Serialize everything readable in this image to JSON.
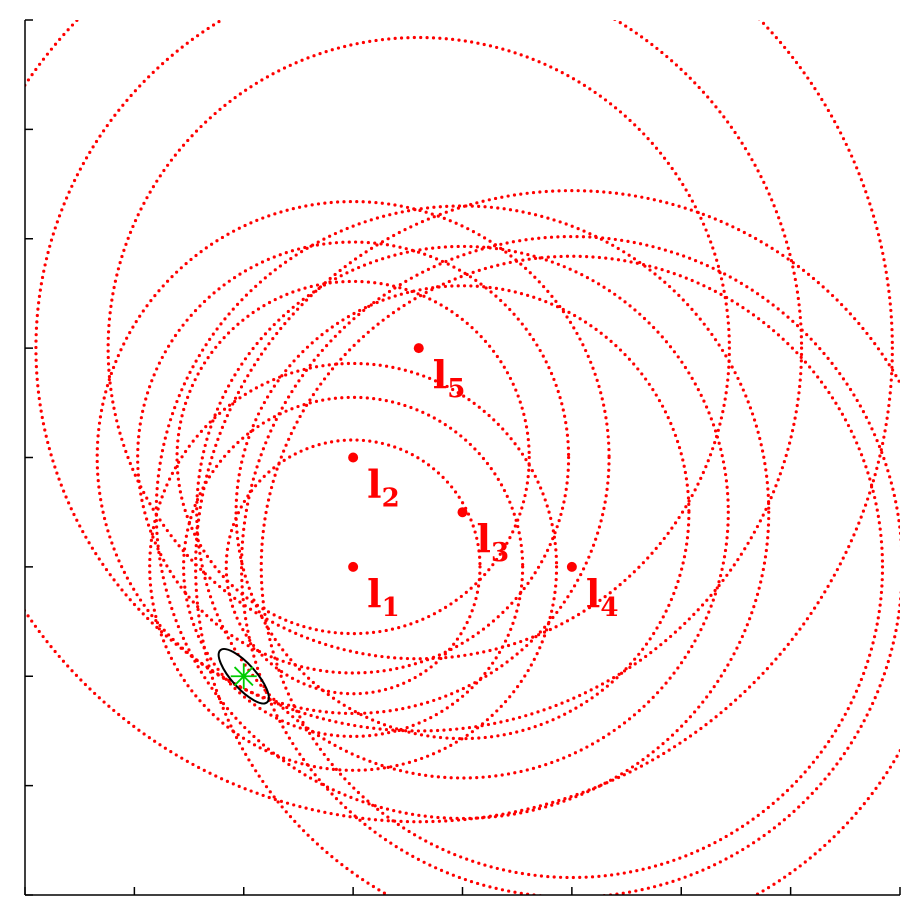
{
  "colors": {
    "range_circle": "#ff0000",
    "landmark": "#ff0000",
    "label": "#ff0000",
    "axis": "#000000",
    "ellipse": "#000000",
    "estimate": "#00cc00",
    "background": "#ffffff"
  },
  "axes": {
    "xlim": [
      0,
      8
    ],
    "ylim": [
      0,
      8
    ],
    "x_ticks": [
      0,
      1,
      2,
      3,
      4,
      5,
      6,
      7,
      8
    ],
    "y_ticks": [
      0,
      1,
      2,
      3,
      4,
      5,
      6,
      7,
      8
    ],
    "tick_labels_shown": false
  },
  "landmarks": [
    {
      "id": "l1",
      "letter": "l",
      "sub": "1",
      "x": 3,
      "y": 3
    },
    {
      "id": "l2",
      "letter": "l",
      "sub": "2",
      "x": 3,
      "y": 4
    },
    {
      "id": "l3",
      "letter": "l",
      "sub": "3",
      "x": 4,
      "y": 3.5
    },
    {
      "id": "l4",
      "letter": "l",
      "sub": "4",
      "x": 5,
      "y": 3
    },
    {
      "id": "l5",
      "letter": "l",
      "sub": "5",
      "x": 3.6,
      "y": 5
    }
  ],
  "range_circles": [
    {
      "landmark": "l1",
      "radius": 1.16
    },
    {
      "landmark": "l1",
      "radius": 1.55
    },
    {
      "landmark": "l1",
      "radius": 1.86
    },
    {
      "landmark": "l2",
      "radius": 1.61
    },
    {
      "landmark": "l2",
      "radius": 1.97
    },
    {
      "landmark": "l2",
      "radius": 2.34
    },
    {
      "landmark": "l3",
      "radius": 2.07
    },
    {
      "landmark": "l3",
      "radius": 2.43
    },
    {
      "landmark": "l3",
      "radius": 2.8
    },
    {
      "landmark": "l4",
      "radius": 2.84
    },
    {
      "landmark": "l4",
      "radius": 3.02
    },
    {
      "landmark": "l4",
      "radius": 3.44
    },
    {
      "landmark": "l5",
      "radius": 2.84
    },
    {
      "landmark": "l5",
      "radius": 3.5
    },
    {
      "landmark": "l5",
      "radius": 4.33
    }
  ],
  "estimate": {
    "x": 2.0,
    "y": 2.0
  },
  "covariance_ellipse": {
    "center_x": 2.0,
    "center_y": 2.0,
    "semi_major": 0.32,
    "semi_minor": 0.11,
    "angle_deg": -48
  }
}
